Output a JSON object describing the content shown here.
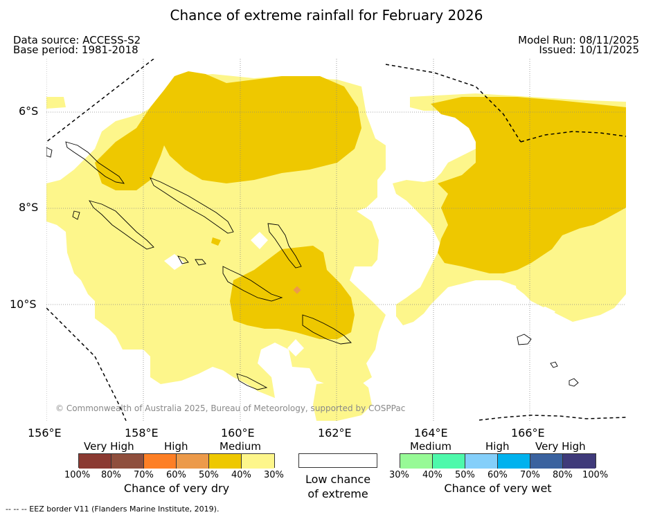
{
  "title": "Chance of extreme rainfall for February 2026",
  "meta": {
    "data_source": "Data source: ACCESS-S2",
    "base_period": "Base period: 1981-2018",
    "model_run": "Model Run: 08/11/2025",
    "issued": "Issued: 10/11/2025"
  },
  "copyright": "© Commonwealth of Australia 2025, Bureau of Meteorology, supported by COSPPac",
  "lat_labels": [
    "6°S",
    "8°S",
    "10°S"
  ],
  "lon_labels": [
    "156°E",
    "158°E",
    "160°E",
    "162°E",
    "164°E",
    "166°E"
  ],
  "dry_legend": {
    "levels": [
      "Very High",
      "High",
      "Medium"
    ],
    "colors": [
      "#8b3a32",
      "#8f4f3d",
      "#fd7f25",
      "#ec9a4a",
      "#eec800",
      "#fdf68b"
    ],
    "ticks": [
      "100%",
      "80%",
      "70%",
      "60%",
      "50%",
      "40%",
      "30%"
    ],
    "caption": "Chance of very dry"
  },
  "low_legend": {
    "color": "#ffffff",
    "caption_line1": "Low chance",
    "caption_line2": "of extreme"
  },
  "wet_legend": {
    "levels": [
      "Medium",
      "High",
      "Very High"
    ],
    "colors": [
      "#97fa96",
      "#4ef9ab",
      "#84cffa",
      "#00b2ee",
      "#3a629f",
      "#3f3a7a"
    ],
    "ticks": [
      "30%",
      "40%",
      "50%",
      "60%",
      "70%",
      "80%",
      "100%"
    ],
    "caption": "Chance of very wet"
  },
  "footer": "--  --  -- EEZ border V11 (Flanders Marine Institute, 2019)."
}
